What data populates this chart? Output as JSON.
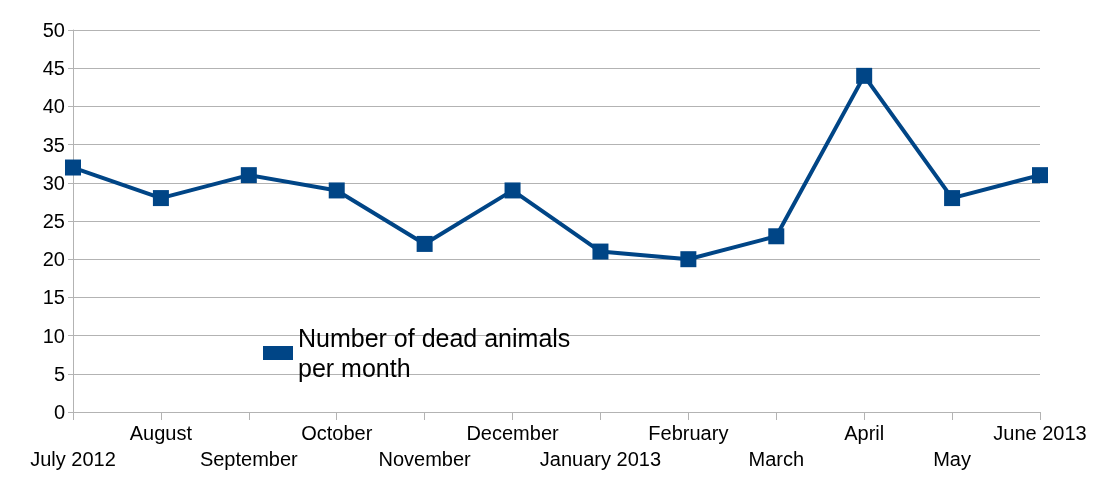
{
  "chart_data": {
    "type": "line",
    "categories": [
      "July 2012",
      "August",
      "September",
      "October",
      "November",
      "December",
      "January 2013",
      "February",
      "March",
      "April",
      "May",
      "June 2013"
    ],
    "series": [
      {
        "name": "Number of dead animals per month",
        "color": "#004586",
        "values": [
          32,
          28,
          31,
          29,
          22,
          29,
          21,
          20,
          23,
          44,
          28,
          31
        ]
      }
    ],
    "ylim": [
      0,
      50
    ],
    "yticks": [
      0,
      5,
      10,
      15,
      20,
      25,
      30,
      35,
      40,
      45,
      50
    ],
    "grid": "y",
    "legend": "center",
    "marker": "square",
    "line_style": "solid"
  }
}
